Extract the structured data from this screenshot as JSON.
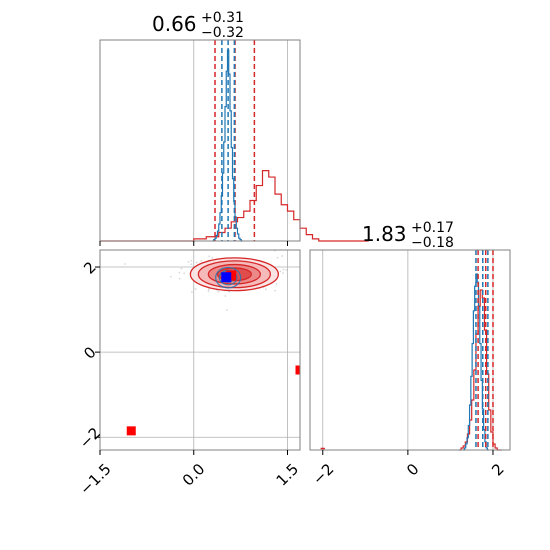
{
  "chart_data": {
    "type": "corner",
    "parameters": [
      {
        "title_value": "0.66",
        "title_plus": "+0.31",
        "title_minus": "−0.32",
        "range": [
          -1.5,
          1.7
        ],
        "ticks": [
          -1.5,
          0.0,
          1.5
        ],
        "tick_labels": [
          "−1.5",
          "0.0",
          "1.5"
        ]
      },
      {
        "title_value": "1.83",
        "title_plus": "+0.17",
        "title_minus": "−0.18",
        "range": [
          -2.3,
          2.4
        ],
        "ticks": [
          -2,
          0,
          2
        ],
        "tick_labels": [
          "−2",
          "0",
          "2"
        ]
      }
    ],
    "series": [
      {
        "name": "",
        "color": "#d62728",
        "quantile_lines_p1": [
          0.34,
          0.66,
          0.97
        ],
        "quantile_lines_p2": [
          1.65,
          1.83,
          2.0
        ],
        "hist1_bin_edges": [
          -1.5,
          0.2,
          1.4
        ],
        "hist1_bin_width": 0.1,
        "hist1_counts": [
          0,
          0,
          0,
          0,
          0,
          0,
          0,
          0,
          0,
          0,
          0,
          0,
          0,
          0,
          0,
          1,
          1,
          2,
          2,
          4,
          6,
          9,
          11,
          14,
          19,
          26,
          33,
          30,
          22,
          17,
          14,
          10,
          6,
          3,
          1,
          0,
          0,
          0,
          0,
          0,
          0,
          0,
          0
        ],
        "hist2_bin_width": 0.05,
        "hist2_start": 1.2,
        "hist2_counts": [
          0,
          1,
          2,
          4,
          8,
          15,
          25,
          40,
          58,
          72,
          80,
          76,
          60,
          38,
          20,
          9,
          3,
          1,
          0,
          0
        ],
        "contour_center": [
          0.65,
          1.83
        ],
        "contour_sigma": [
          0.32,
          0.175
        ],
        "truth_point": [
          0.55,
          1.8
        ]
      },
      {
        "name": "",
        "color": "#1f77b4",
        "quantile_lines_p1": [
          0.45,
          0.55,
          0.65
        ],
        "quantile_lines_p2": [
          1.6,
          1.76,
          1.88
        ],
        "hist1_start": 0.3,
        "hist1_bin_width": 0.02,
        "hist1_counts": [
          0,
          1,
          2,
          4,
          7,
          12,
          20,
          32,
          48,
          70,
          95,
          120,
          135,
          118,
          92,
          66,
          44,
          28,
          17,
          9,
          5,
          2,
          1,
          0
        ],
        "hist2_start": 1.3,
        "hist2_bin_width": 0.03,
        "hist2_counts": [
          0,
          1,
          3,
          6,
          12,
          22,
          36,
          52,
          68,
          80,
          86,
          82,
          70,
          52,
          34,
          20,
          10,
          4,
          1,
          0
        ],
        "contour_center": [
          0.55,
          1.75
        ],
        "contour_sigma": [
          0.1,
          0.12
        ],
        "truth_point": [
          0.52,
          1.76
        ]
      }
    ],
    "markers": [
      {
        "x": -1.0,
        "y": -1.85,
        "color": "#ff0000"
      },
      {
        "x": 1.7,
        "y": -0.42,
        "color": "#ff0000"
      }
    ],
    "grid": true,
    "legend": "none"
  }
}
